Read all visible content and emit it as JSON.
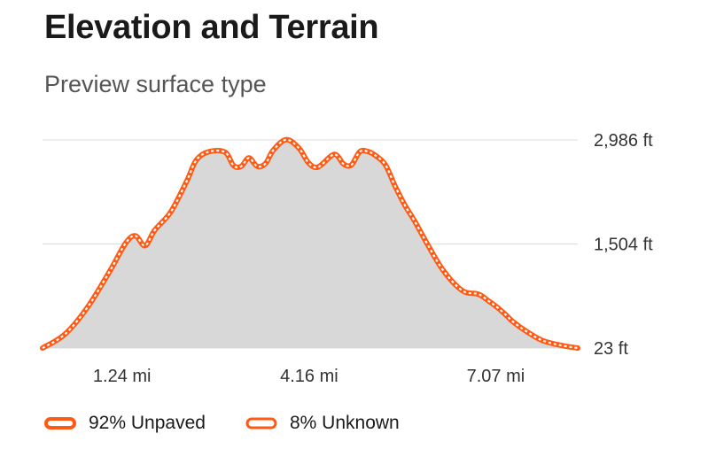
{
  "header": {
    "title": "Elevation and Terrain",
    "subtitle": "Preview surface type"
  },
  "colors": {
    "line": "#ff5a14",
    "fill": "#d8d8d8",
    "grid": "#dddddd",
    "unknown_stroke": "#ff5a14"
  },
  "chart_data": {
    "type": "area",
    "xlabel": "",
    "ylabel": "",
    "x_unit": "mi",
    "y_unit": "ft",
    "xlim": [
      0,
      8.35
    ],
    "ylim": [
      23,
      2986
    ],
    "x_ticks": [
      {
        "value": 1.24,
        "label": "1.24 mi"
      },
      {
        "value": 4.16,
        "label": "4.16 mi"
      },
      {
        "value": 7.07,
        "label": "7.07 mi"
      }
    ],
    "y_ticks": [
      {
        "value": 2986,
        "label": "2,986 ft"
      },
      {
        "value": 1504,
        "label": "1,504 ft"
      },
      {
        "value": 23,
        "label": "23 ft"
      }
    ],
    "grid": true,
    "series": [
      {
        "name": "Elevation",
        "x": [
          0,
          0.35,
          0.7,
          1.05,
          1.3,
          1.45,
          1.6,
          1.75,
          2.0,
          2.25,
          2.4,
          2.6,
          2.85,
          2.98,
          3.1,
          3.22,
          3.35,
          3.48,
          3.6,
          3.8,
          4.0,
          4.15,
          4.3,
          4.55,
          4.7,
          4.82,
          4.95,
          5.08,
          5.2,
          5.35,
          5.5,
          5.65,
          5.8,
          6.0,
          6.25,
          6.55,
          6.8,
          6.95,
          7.07,
          7.2,
          7.35,
          7.55,
          7.8,
          8.1,
          8.35
        ],
        "y": [
          23,
          220,
          600,
          1120,
          1520,
          1620,
          1480,
          1700,
          1960,
          2400,
          2700,
          2820,
          2810,
          2620,
          2610,
          2730,
          2610,
          2650,
          2840,
          2990,
          2870,
          2660,
          2600,
          2780,
          2640,
          2630,
          2820,
          2820,
          2760,
          2630,
          2330,
          2060,
          1840,
          1510,
          1130,
          840,
          790,
          700,
          620,
          520,
          390,
          260,
          130,
          60,
          23
        ]
      }
    ]
  },
  "legend": {
    "items": [
      {
        "label": "92% Unpaved"
      },
      {
        "label": "8% Unknown"
      }
    ]
  }
}
